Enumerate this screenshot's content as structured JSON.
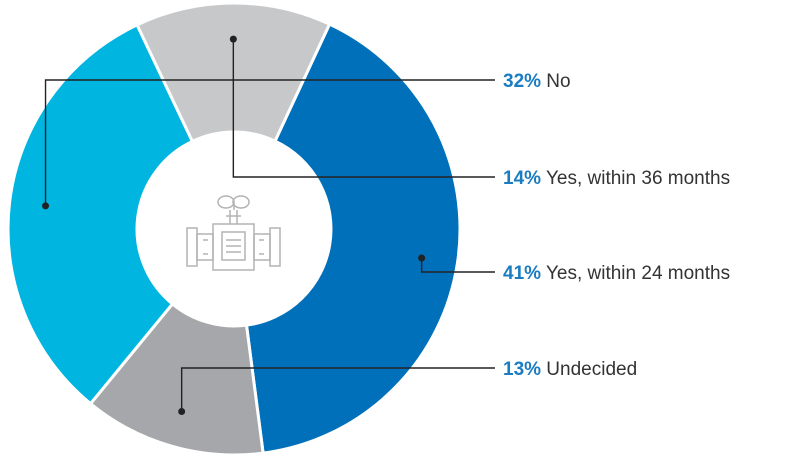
{
  "chart_data": {
    "type": "pie",
    "donut": true,
    "title": "",
    "slices": [
      {
        "label": "Yes, within 24 months",
        "value": 41,
        "pct_text": "41%",
        "color": "#0070BA"
      },
      {
        "label": "Undecided",
        "value": 13,
        "pct_text": "13%",
        "color": "#A5A7AA"
      },
      {
        "label": "No",
        "value": 32,
        "pct_text": "32%",
        "color": "#00B5E0"
      },
      {
        "label": "Yes, within 36 months",
        "value": 14,
        "pct_text": "14%",
        "color": "#C7C8CA"
      }
    ],
    "label_color": "#1A7CC1",
    "legend_placement": "right",
    "center_icon": "valve-pipe-icon"
  }
}
